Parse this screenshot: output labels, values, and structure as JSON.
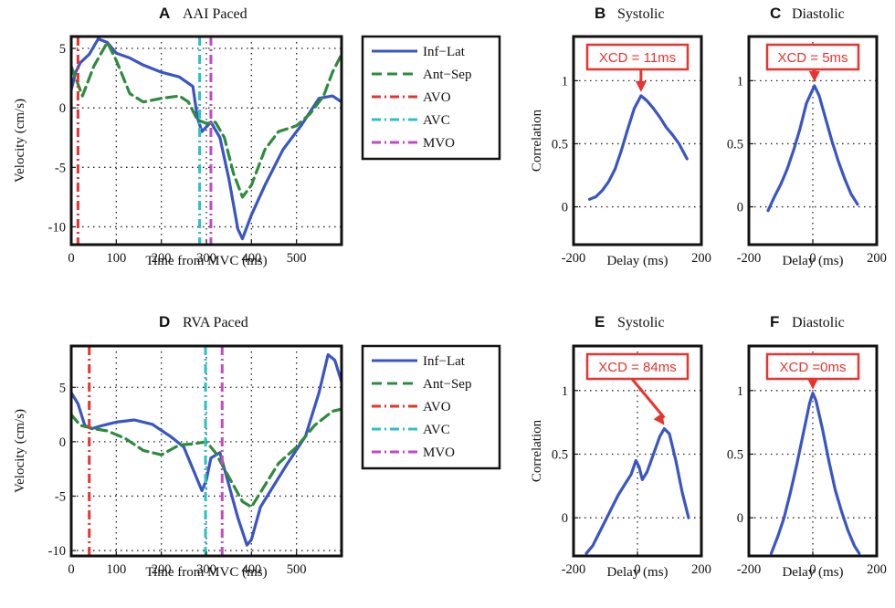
{
  "chart_data": [
    {
      "id": "A",
      "type": "line",
      "panel_letter": "A",
      "title": "AAI Paced",
      "xlabel": "Time from MVC (ms)",
      "ylabel": "Velocity (cm/s)",
      "xlim": [
        0,
        600
      ],
      "ylim": [
        -11.5,
        6
      ],
      "xticks": [
        0,
        100,
        200,
        300,
        400,
        500
      ],
      "yticks": [
        -10,
        -5,
        0,
        5
      ],
      "grid": true,
      "legend": "outside-right",
      "series": [
        {
          "name": "Inf−Lat",
          "style": "solid",
          "color": "#3a55c4",
          "x": [
            0,
            10,
            20,
            40,
            60,
            80,
            100,
            130,
            160,
            200,
            240,
            270,
            280,
            290,
            310,
            330,
            350,
            370,
            380,
            400,
            430,
            470,
            510,
            550,
            580,
            600
          ],
          "y": [
            1.5,
            3,
            3.8,
            4.5,
            5.8,
            5.5,
            4.6,
            4.2,
            3.6,
            3.0,
            2.6,
            1.8,
            -0.8,
            -2.0,
            -1.2,
            -2.5,
            -6,
            -10.2,
            -11,
            -9,
            -6.5,
            -3.5,
            -1.5,
            0.8,
            1.0,
            0.5
          ]
        },
        {
          "name": "Ant−Sep",
          "style": "dashed",
          "color": "#2e8b3e",
          "x": [
            0,
            10,
            25,
            50,
            80,
            100,
            130,
            160,
            200,
            240,
            260,
            280,
            300,
            320,
            340,
            360,
            380,
            400,
            430,
            460,
            500,
            530,
            560,
            580,
            600
          ],
          "y": [
            3.5,
            2.5,
            1.0,
            3.5,
            5.5,
            4.0,
            1.2,
            0.5,
            0.8,
            1.0,
            0.5,
            -1.0,
            -1.3,
            -1.2,
            -2.5,
            -5.5,
            -7.5,
            -6.5,
            -3.5,
            -2.0,
            -1.5,
            -0.5,
            1.0,
            3.0,
            4.5
          ]
        },
        {
          "name": "AVO",
          "style": "dashdot",
          "color": "#e8332e",
          "vline": 15
        },
        {
          "name": "AVC",
          "style": "dashdot",
          "color": "#2cc1c8",
          "vline": 285
        },
        {
          "name": "MVO",
          "style": "dashdot",
          "color": "#c24ac2",
          "vline": 310
        }
      ]
    },
    {
      "id": "B",
      "type": "line",
      "panel_letter": "B",
      "title": "Systolic",
      "xlabel": "Delay (ms)",
      "ylabel": "Correlation",
      "xlim": [
        -200,
        200
      ],
      "ylim": [
        -0.3,
        1.35
      ],
      "xticks": [
        -200,
        200
      ],
      "yticks": [
        0,
        0.5,
        1
      ],
      "grid": true,
      "annotation": "XCD = 11ms",
      "annotation_target": [
        11,
        0.88
      ],
      "series": [
        {
          "name": "",
          "color": "#3a55c4",
          "x": [
            -150,
            -130,
            -110,
            -90,
            -70,
            -50,
            -30,
            -10,
            11,
            30,
            50,
            70,
            90,
            110,
            130,
            155
          ],
          "y": [
            0.06,
            0.08,
            0.13,
            0.2,
            0.3,
            0.45,
            0.62,
            0.78,
            0.88,
            0.84,
            0.78,
            0.71,
            0.63,
            0.57,
            0.5,
            0.38
          ]
        }
      ]
    },
    {
      "id": "C",
      "type": "line",
      "panel_letter": "C",
      "title": "Diastolic",
      "xlabel": "Delay (ms)",
      "ylabel": "",
      "xlim": [
        -200,
        200
      ],
      "ylim": [
        -0.3,
        1.35
      ],
      "xticks": [
        -200,
        0,
        200
      ],
      "yticks": [
        0,
        0.5,
        1
      ],
      "grid": true,
      "annotation": "XCD = 5ms",
      "annotation_target": [
        5,
        0.96
      ],
      "series": [
        {
          "name": "",
          "color": "#3a55c4",
          "x": [
            -140,
            -120,
            -100,
            -80,
            -60,
            -40,
            -20,
            5,
            20,
            40,
            60,
            80,
            100,
            120,
            140
          ],
          "y": [
            -0.03,
            0.08,
            0.18,
            0.3,
            0.45,
            0.62,
            0.82,
            0.96,
            0.88,
            0.7,
            0.52,
            0.36,
            0.22,
            0.1,
            0.02
          ]
        }
      ]
    },
    {
      "id": "D",
      "type": "line",
      "panel_letter": "D",
      "title": "RVA Paced",
      "xlabel": "Time from MVC (ms)",
      "ylabel": "Velocity (cm/s)",
      "xlim": [
        0,
        600
      ],
      "ylim": [
        -10.5,
        8.8
      ],
      "xticks": [
        0,
        100,
        200,
        300,
        400,
        500
      ],
      "yticks": [
        -10,
        -5,
        0,
        5
      ],
      "grid": true,
      "legend": "outside-right",
      "series": [
        {
          "name": "Inf−Lat",
          "style": "solid",
          "color": "#3a55c4",
          "x": [
            0,
            15,
            30,
            45,
            70,
            100,
            140,
            180,
            220,
            250,
            270,
            290,
            300,
            310,
            330,
            350,
            370,
            390,
            400,
            420,
            450,
            480,
            520,
            550,
            570,
            585,
            600
          ],
          "y": [
            4.5,
            3.5,
            1.5,
            1.2,
            1.5,
            1.8,
            2.0,
            1.6,
            0.5,
            -0.5,
            -2.5,
            -4.5,
            -3.5,
            -1.5,
            -1.0,
            -4.0,
            -7.0,
            -9.5,
            -9.0,
            -6.0,
            -4.0,
            -2.0,
            0.5,
            4.5,
            8.0,
            7.5,
            5.5
          ]
        },
        {
          "name": "Ant−Sep",
          "style": "dashed",
          "color": "#2e8b3e",
          "x": [
            0,
            20,
            50,
            80,
            120,
            160,
            200,
            240,
            270,
            300,
            320,
            340,
            360,
            380,
            400,
            430,
            460,
            500,
            540,
            580,
            600
          ],
          "y": [
            2.5,
            1.5,
            1.2,
            1.0,
            0.3,
            -0.8,
            -1.2,
            -0.3,
            -0.2,
            0.0,
            -1.0,
            -2.5,
            -4.0,
            -5.5,
            -6.0,
            -4.0,
            -2.0,
            -0.5,
            1.5,
            2.8,
            3.0
          ]
        },
        {
          "name": "AVO",
          "style": "dashdot",
          "color": "#e8332e",
          "vline": 40
        },
        {
          "name": "AVC",
          "style": "dashdot",
          "color": "#2cc1c8",
          "vline": 298
        },
        {
          "name": "MVO",
          "style": "dashdot",
          "color": "#c24ac2",
          "vline": 335
        }
      ]
    },
    {
      "id": "E",
      "type": "line",
      "panel_letter": "E",
      "title": "Systolic",
      "xlabel": "Delay (ms)",
      "ylabel": "Correlation",
      "xlim": [
        -200,
        200
      ],
      "ylim": [
        -0.3,
        1.35
      ],
      "xticks": [
        -200,
        0,
        200
      ],
      "yticks": [
        0,
        0.5,
        1
      ],
      "grid": true,
      "annotation": "XCD = 84ms",
      "annotation_target": [
        84,
        0.7
      ],
      "series": [
        {
          "name": "",
          "color": "#3a55c4",
          "x": [
            -160,
            -140,
            -120,
            -100,
            -80,
            -60,
            -40,
            -20,
            -5,
            5,
            15,
            30,
            50,
            70,
            84,
            100,
            120,
            140,
            160
          ],
          "y": [
            -0.28,
            -0.22,
            -0.12,
            -0.02,
            0.08,
            0.18,
            0.26,
            0.34,
            0.45,
            0.4,
            0.3,
            0.36,
            0.5,
            0.64,
            0.7,
            0.66,
            0.45,
            0.2,
            0.0
          ]
        }
      ]
    },
    {
      "id": "F",
      "type": "line",
      "panel_letter": "F",
      "title": "Diastolic",
      "xlabel": "Delay (ms)",
      "ylabel": "",
      "xlim": [
        -200,
        200
      ],
      "ylim": [
        -0.3,
        1.35
      ],
      "xticks": [
        -200,
        0,
        200
      ],
      "yticks": [
        0,
        0.5,
        1
      ],
      "grid": true,
      "annotation": "XCD =0ms",
      "annotation_target": [
        0,
        0.98
      ],
      "series": [
        {
          "name": "",
          "color": "#3a55c4",
          "x": [
            -130,
            -110,
            -90,
            -70,
            -50,
            -30,
            -10,
            0,
            10,
            30,
            50,
            70,
            90,
            110,
            130,
            145
          ],
          "y": [
            -0.28,
            -0.15,
            0.0,
            0.2,
            0.42,
            0.66,
            0.9,
            0.98,
            0.92,
            0.7,
            0.45,
            0.22,
            0.05,
            -0.1,
            -0.22,
            -0.28
          ]
        }
      ]
    }
  ]
}
